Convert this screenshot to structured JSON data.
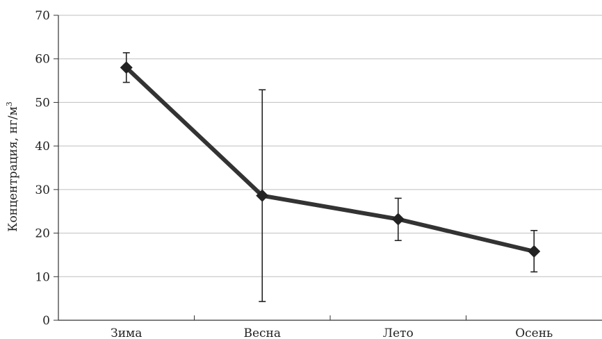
{
  "chart_data": {
    "type": "line",
    "title": "",
    "xlabel": "",
    "ylabel": "Концентрация, нг/м",
    "ylabel_superscript": "3",
    "categories": [
      "Зима",
      "Весна",
      "Лето",
      "Осень"
    ],
    "series": [
      {
        "values": [
          58,
          28.6,
          23.2,
          15.8
        ],
        "error_low": [
          54.6,
          4.3,
          18.3,
          11.1
        ],
        "error_high": [
          61.4,
          52.9,
          28.0,
          20.6
        ],
        "color": "#333333",
        "marker": "diamond"
      }
    ],
    "ylim": [
      0,
      70
    ],
    "yticks": [
      "0",
      "10",
      "20",
      "30",
      "40",
      "50",
      "60",
      "70"
    ],
    "grid": "horizontal",
    "grid_color": "#bfbfbf",
    "legend": "none"
  }
}
